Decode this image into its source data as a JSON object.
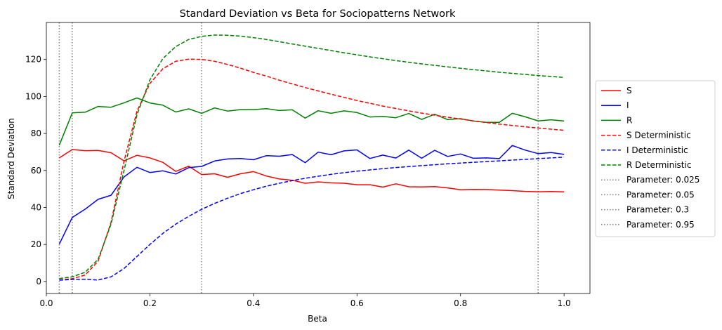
{
  "chart_data": {
    "type": "line",
    "title": "Standard Deviation vs Beta for Sociopatterns Network",
    "xlabel": "Beta",
    "ylabel": "Standard Deviation",
    "xlim": [
      -0.0,
      1.05
    ],
    "ylim": [
      -6.5,
      140
    ],
    "xticks": [
      0.0,
      0.2,
      0.4,
      0.6,
      0.8,
      1.0
    ],
    "xtick_labels": [
      "0.0",
      "0.2",
      "0.4",
      "0.6",
      "0.8",
      "1.0"
    ],
    "yticks": [
      0,
      20,
      40,
      60,
      80,
      100,
      120
    ],
    "ytick_labels": [
      "0",
      "20",
      "40",
      "60",
      "80",
      "100",
      "120"
    ],
    "grid": false,
    "legend_position": "right-outside",
    "x": [
      0.025,
      0.05,
      0.075,
      0.1,
      0.125,
      0.15,
      0.175,
      0.2,
      0.225,
      0.25,
      0.275,
      0.3,
      0.325,
      0.35,
      0.375,
      0.4,
      0.425,
      0.45,
      0.475,
      0.5,
      0.525,
      0.55,
      0.575,
      0.6,
      0.625,
      0.65,
      0.675,
      0.7,
      0.725,
      0.75,
      0.775,
      0.8,
      0.825,
      0.85,
      0.875,
      0.9,
      0.925,
      0.95,
      0.975,
      1.0
    ],
    "series": [
      {
        "name": "S",
        "color": "#ff0000",
        "style": "solid",
        "values": [
          66.8,
          71.3,
          70.7,
          70.8,
          69.6,
          65.2,
          68.2,
          66.8,
          64.4,
          59.5,
          62.3,
          57.8,
          58.2,
          56.3,
          58.2,
          59.4,
          57.0,
          55.4,
          54.7,
          53.1,
          53.8,
          53.3,
          53.1,
          52.3,
          52.3,
          51.0,
          52.8,
          51.2,
          51.1,
          51.3,
          50.6,
          49.6,
          49.8,
          49.7,
          49.4,
          49.1,
          48.7,
          48.5,
          48.6,
          48.4
        ]
      },
      {
        "name": "I",
        "color": "#0000ff",
        "style": "solid",
        "values": [
          20.2,
          34.6,
          39.1,
          44.4,
          46.6,
          56.5,
          61.7,
          58.9,
          59.8,
          58.1,
          61.5,
          62.2,
          65.1,
          66.2,
          66.5,
          65.8,
          68.0,
          67.7,
          68.6,
          64.2,
          69.9,
          68.5,
          70.6,
          71.1,
          66.5,
          68.3,
          66.7,
          71.0,
          66.6,
          70.9,
          67.6,
          68.9,
          66.6,
          66.8,
          66.4,
          73.5,
          71.0,
          69.1,
          69.7,
          68.7
        ]
      },
      {
        "name": "R",
        "color": "#008000",
        "style": "solid",
        "values": [
          73.7,
          91.1,
          91.5,
          94.6,
          94.2,
          96.6,
          99.2,
          96.5,
          95.3,
          91.6,
          93.3,
          90.9,
          93.8,
          92.1,
          92.9,
          92.9,
          93.4,
          92.4,
          92.8,
          88.3,
          92.3,
          90.9,
          92.2,
          91.3,
          88.9,
          89.2,
          88.5,
          90.8,
          87.6,
          90.4,
          87.5,
          88.0,
          86.7,
          86.0,
          86.0,
          90.9,
          89.0,
          86.8,
          87.4,
          86.7
        ]
      },
      {
        "name": "S Deterministic",
        "color": "#ff0000",
        "style": "dashed",
        "values": [
          0.8,
          1.5,
          3.5,
          11.0,
          32.0,
          65.0,
          92.0,
          107.0,
          115.0,
          119.0,
          120.2,
          120.0,
          119.0,
          117.3,
          115.3,
          113.0,
          111.0,
          108.8,
          106.8,
          104.8,
          103.0,
          101.2,
          99.5,
          97.8,
          96.3,
          94.8,
          93.5,
          92.2,
          91.0,
          89.9,
          88.8,
          87.8,
          86.8,
          85.9,
          85.1,
          84.3,
          83.6,
          82.9,
          82.3,
          81.7
        ]
      },
      {
        "name": "I Deterministic",
        "color": "#0000ff",
        "style": "dashed",
        "values": [
          0.7,
          1.1,
          1.2,
          0.8,
          2.5,
          7.0,
          13.5,
          20.0,
          26.0,
          31.0,
          35.2,
          39.0,
          42.2,
          45.0,
          47.5,
          49.6,
          51.5,
          53.1,
          54.5,
          55.8,
          56.9,
          57.9,
          58.8,
          59.6,
          60.3,
          61.0,
          61.6,
          62.1,
          62.6,
          63.1,
          63.6,
          64.0,
          64.4,
          64.8,
          65.2,
          65.6,
          66.0,
          66.4,
          66.8,
          67.2
        ]
      },
      {
        "name": "R Deterministic",
        "color": "#008000",
        "style": "dashed",
        "values": [
          1.6,
          2.5,
          5.0,
          12.0,
          31.0,
          60.0,
          90.0,
          109.0,
          120.5,
          127.0,
          130.8,
          132.5,
          133.2,
          133.1,
          132.6,
          131.8,
          130.8,
          129.6,
          128.4,
          127.2,
          126.0,
          124.8,
          123.6,
          122.5,
          121.4,
          120.4,
          119.4,
          118.5,
          117.6,
          116.8,
          116.0,
          115.2,
          114.5,
          113.8,
          113.1,
          112.5,
          111.9,
          111.3,
          110.8,
          110.3
        ]
      }
    ],
    "vlines": [
      {
        "name": "Parameter: 0.025",
        "x": 0.025,
        "color": "#808080"
      },
      {
        "name": "Parameter: 0.05",
        "x": 0.05,
        "color": "#808080"
      },
      {
        "name": "Parameter: 0.3",
        "x": 0.3,
        "color": "#808080"
      },
      {
        "name": "Parameter: 0.95",
        "x": 0.95,
        "color": "#808080"
      }
    ]
  }
}
